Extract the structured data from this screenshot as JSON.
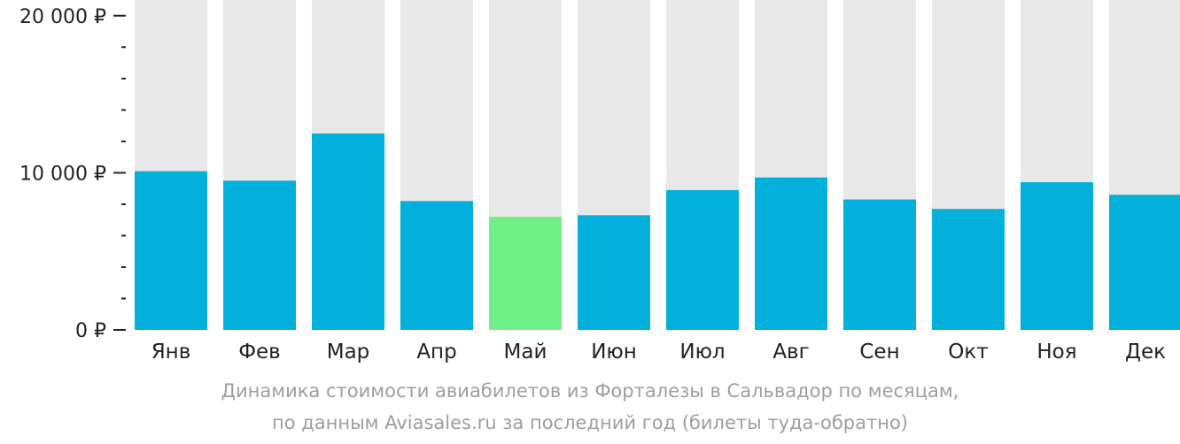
{
  "chart_data": {
    "type": "bar",
    "categories": [
      "Янв",
      "Фев",
      "Мар",
      "Апр",
      "Май",
      "Июн",
      "Июл",
      "Авг",
      "Сен",
      "Окт",
      "Ноя",
      "Дек"
    ],
    "values": [
      10100,
      9500,
      12500,
      8200,
      7200,
      7300,
      8900,
      9700,
      8300,
      7700,
      9400,
      8600
    ],
    "highlight_index": 4,
    "ylim": [
      0,
      21000
    ],
    "y_ticks": [
      {
        "value": 0,
        "label": "0 ₽"
      },
      {
        "value": 10000,
        "label": "10 000 ₽"
      },
      {
        "value": 20000,
        "label": "20 000 ₽"
      }
    ],
    "y_minor_step": 2000,
    "colors": {
      "bar": "#03b0dc",
      "highlight": "#6ef087",
      "background_bar": "#e8e8e8",
      "axis": "#222222"
    }
  },
  "caption": {
    "line1": "Динамика стоимости авиабилетов из Форталезы в Сальвадор по месяцам,",
    "line2": "по данным Aviasales.ru за последний год (билеты туда-обратно)"
  }
}
